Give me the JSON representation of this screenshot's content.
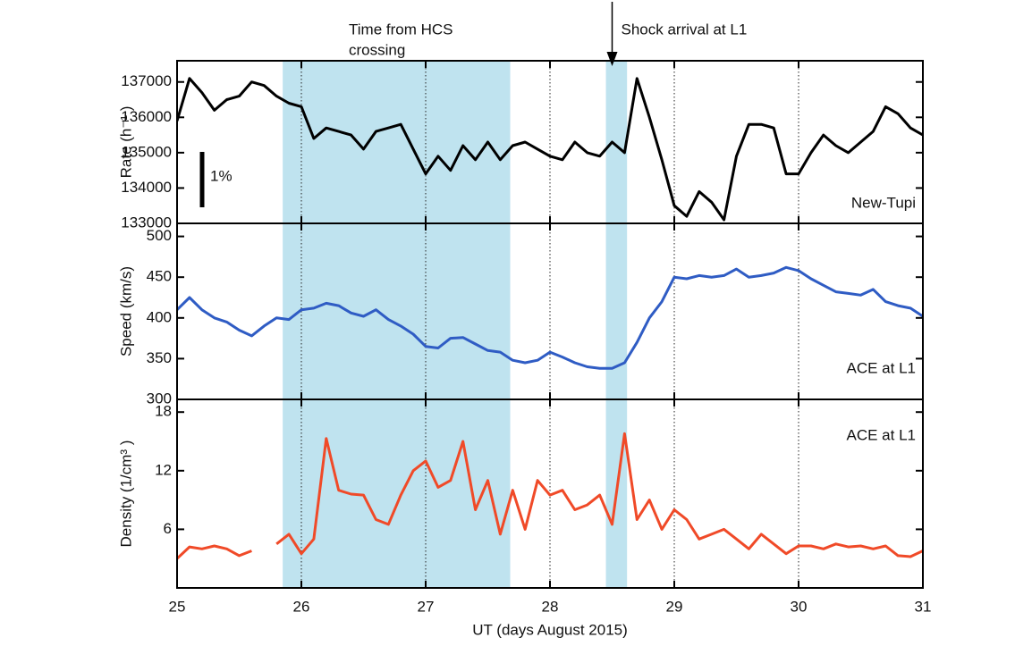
{
  "chart_data": [
    {
      "type": "line",
      "ylabel": "Rate (h⁻¹ )",
      "x": [
        25.0,
        25.1,
        25.2,
        25.3,
        25.4,
        25.5,
        25.6,
        25.7,
        25.8,
        25.9,
        26.0,
        26.1,
        26.2,
        26.3,
        26.4,
        26.5,
        26.6,
        26.7,
        26.8,
        26.9,
        27.0,
        27.1,
        27.2,
        27.3,
        27.4,
        27.5,
        27.6,
        27.7,
        27.8,
        27.9,
        28.0,
        28.1,
        28.2,
        28.3,
        28.4,
        28.5,
        28.6,
        28.7,
        28.8,
        28.9,
        29.0,
        29.1,
        29.2,
        29.3,
        29.4,
        29.5,
        29.6,
        29.7,
        29.8,
        29.9,
        30.0,
        30.1,
        30.2,
        30.3,
        30.4,
        30.5,
        30.6,
        30.7,
        30.8,
        30.9,
        31.0
      ],
      "series": [
        {
          "name": "New-Tupi",
          "color": "#000000",
          "values": [
            135900,
            137100,
            136700,
            136200,
            136500,
            136600,
            137000,
            136900,
            136600,
            136400,
            136300,
            135400,
            135700,
            135600,
            135500,
            135100,
            135600,
            135700,
            135800,
            135100,
            134400,
            134900,
            134500,
            135200,
            134800,
            135300,
            134800,
            135200,
            135300,
            135100,
            134900,
            134800,
            135300,
            135000,
            134900,
            135300,
            135000,
            137100,
            136000,
            134800,
            133500,
            133200,
            133900,
            133600,
            133100,
            134900,
            135800,
            135800,
            135700,
            134400,
            134400,
            135000,
            135500,
            135200,
            135000,
            135300,
            135600,
            136300,
            136100,
            135700,
            135500
          ]
        }
      ],
      "xlim": [
        25,
        31
      ],
      "xticks": [
        25,
        26,
        27,
        28,
        29,
        30,
        31
      ],
      "ylim": [
        133000,
        137600
      ],
      "yticks": [
        133000,
        134000,
        135000,
        136000,
        137000
      ],
      "spans": [
        [
          25.85,
          27.68
        ],
        [
          28.45,
          28.62
        ]
      ],
      "span_color": "#bfe3ef",
      "vlines": [
        26,
        27,
        28,
        29,
        30
      ],
      "annotations": [
        {
          "text": "Time from HCS"
        },
        {
          "text": "crossing"
        },
        {
          "text": "Shock arrival at L1",
          "x": 28.5
        },
        {
          "text": "1%"
        }
      ]
    },
    {
      "type": "line",
      "ylabel": "Speed (km/s)",
      "x": [
        25.0,
        25.1,
        25.2,
        25.3,
        25.4,
        25.5,
        25.6,
        25.7,
        25.8,
        25.9,
        26.0,
        26.1,
        26.2,
        26.3,
        26.4,
        26.5,
        26.6,
        26.7,
        26.8,
        26.9,
        27.0,
        27.1,
        27.2,
        27.3,
        27.4,
        27.5,
        27.6,
        27.7,
        27.8,
        27.9,
        28.0,
        28.1,
        28.2,
        28.3,
        28.4,
        28.5,
        28.6,
        28.7,
        28.8,
        28.9,
        29.0,
        29.1,
        29.2,
        29.3,
        29.4,
        29.5,
        29.6,
        29.7,
        29.8,
        29.9,
        30.0,
        30.1,
        30.2,
        30.3,
        30.4,
        30.5,
        30.6,
        30.7,
        30.8,
        30.9,
        31.0
      ],
      "series": [
        {
          "name": "ACE at L1",
          "color": "#2f5cc4",
          "values": [
            410,
            425,
            410,
            400,
            395,
            385,
            378,
            390,
            400,
            398,
            410,
            412,
            418,
            415,
            406,
            402,
            410,
            398,
            390,
            380,
            365,
            363,
            375,
            376,
            368,
            360,
            358,
            348,
            345,
            348,
            358,
            352,
            345,
            340,
            338,
            338,
            345,
            370,
            400,
            420,
            450,
            448,
            452,
            450,
            452,
            460,
            450,
            452,
            455,
            462,
            458,
            448,
            440,
            432,
            430,
            428,
            435,
            420,
            415,
            412,
            402
          ]
        }
      ],
      "xlim": [
        25,
        31
      ],
      "xticks": [
        25,
        26,
        27,
        28,
        29,
        30,
        31
      ],
      "ylim": [
        300,
        516
      ],
      "yticks": [
        300,
        350,
        400,
        450,
        500
      ]
    },
    {
      "type": "line",
      "ylabel": "Density (1/cm³ )",
      "xlabel": "UT (days  August 2015)",
      "x": [
        25.0,
        25.1,
        25.2,
        25.3,
        25.4,
        25.5,
        25.6,
        25.7,
        25.8,
        25.9,
        26.0,
        26.1,
        26.2,
        26.3,
        26.4,
        26.5,
        26.6,
        26.7,
        26.8,
        26.9,
        27.0,
        27.1,
        27.2,
        27.3,
        27.4,
        27.5,
        27.6,
        27.7,
        27.8,
        27.9,
        28.0,
        28.1,
        28.2,
        28.3,
        28.4,
        28.5,
        28.6,
        28.7,
        28.8,
        28.9,
        29.0,
        29.1,
        29.2,
        29.3,
        29.4,
        29.5,
        29.6,
        29.7,
        29.8,
        29.9,
        30.0,
        30.1,
        30.2,
        30.3,
        30.4,
        30.5,
        30.6,
        30.7,
        30.8,
        30.9,
        31.0
      ],
      "series": [
        {
          "name": "ACE at L1",
          "color": "#f04a28",
          "values": [
            3,
            4.2,
            4,
            4.3,
            4,
            3.3,
            3.8,
            null,
            4.5,
            5.5,
            3.5,
            5,
            15.3,
            10,
            9.6,
            9.5,
            7,
            6.5,
            9.5,
            12,
            13,
            10.3,
            11,
            15,
            8,
            11,
            5.5,
            10,
            6,
            11,
            9.5,
            10,
            8,
            8.5,
            9.5,
            6.5,
            15.8,
            7,
            9,
            6,
            8,
            7,
            5,
            5.5,
            6,
            5,
            4,
            5.5,
            4.5,
            3.5,
            4.3,
            4.3,
            4,
            4.5,
            4.2,
            4.3,
            4,
            4.3,
            3.3,
            3.2,
            3.8
          ]
        }
      ],
      "xlim": [
        25,
        31
      ],
      "xticks": [
        25,
        26,
        27,
        28,
        29,
        30,
        31
      ],
      "ylim": [
        0,
        19.3
      ],
      "yticks": [
        6,
        12,
        18
      ]
    }
  ]
}
